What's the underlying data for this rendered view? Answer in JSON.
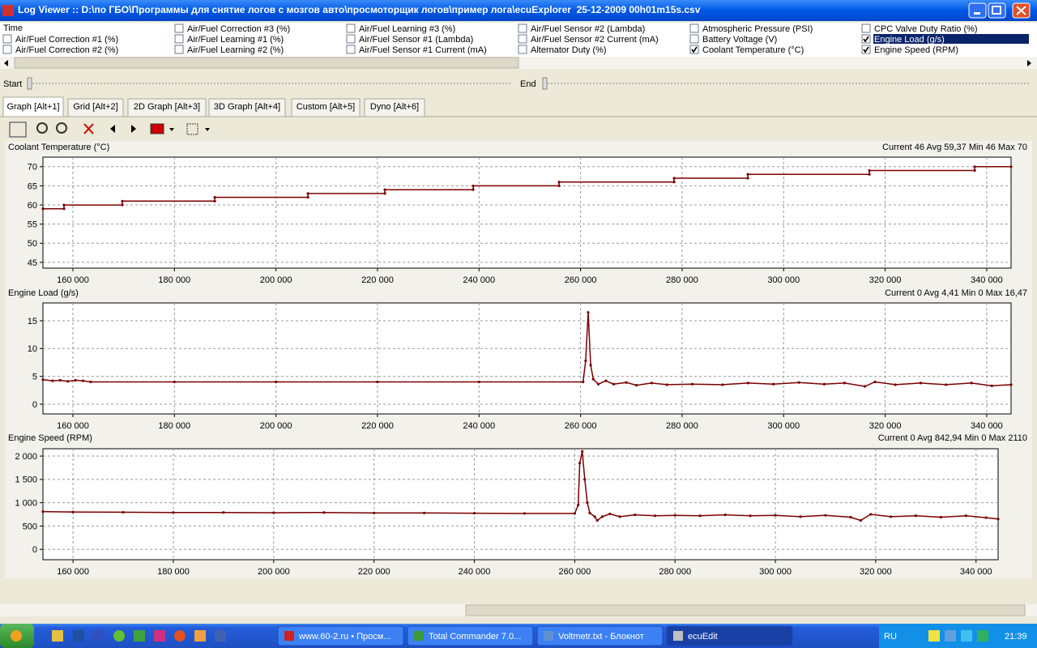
{
  "window": {
    "title": "Log Viewer :: D:\\по ГБО\\Программы для снятие логов с мозгов авто\\просмоторщик логов\\пример лога\\ecuExplorer  25-12-2009 00h01m15s.csv"
  },
  "time_label": "Time",
  "channels": [
    {
      "label": "Air/Fuel Correction #1 (%)",
      "checked": false
    },
    {
      "label": "Air/Fuel Correction #2 (%)",
      "checked": false
    },
    {
      "label": "Air/Fuel Correction #3 (%)",
      "checked": false
    },
    {
      "label": "Air/Fuel Learning #1 (%)",
      "checked": false
    },
    {
      "label": "Air/Fuel Learning #2 (%)",
      "checked": false
    },
    {
      "label": "Air/Fuel Learning #3 (%)",
      "checked": false
    },
    {
      "label": "Air/Fuel Sensor #1 (Lambda)",
      "checked": false
    },
    {
      "label": "Air/Fuel Sensor #1 Current (mA)",
      "checked": false
    },
    {
      "label": "Air/Fuel Sensor #2 (Lambda)",
      "checked": false
    },
    {
      "label": "Air/Fuel Sensor #2 Current (mA)",
      "checked": false
    },
    {
      "label": "Alternator Duty (%)",
      "checked": false
    },
    {
      "label": "Atmospheric Pressure (PSI)",
      "checked": false
    },
    {
      "label": "Battery Voltage (V)",
      "checked": false
    },
    {
      "label": "Coolant Temperature (°C)",
      "checked": true
    },
    {
      "label": "CPC Valve Duty Ratio (%)",
      "checked": false
    },
    {
      "label": "Engine Load (g/s)",
      "checked": true,
      "selected": true
    },
    {
      "label": "Engine Speed (RPM)",
      "checked": true
    }
  ],
  "range": {
    "start": "Start",
    "end": "End"
  },
  "tabs": [
    {
      "label": "Graph [Alt+1]",
      "active": true
    },
    {
      "label": "Grid [Alt+2]",
      "active": false
    },
    {
      "label": "2D Graph [Alt+3]",
      "active": false
    },
    {
      "label": "3D Graph [Alt+4]",
      "active": false
    },
    {
      "label": "Custom [Alt+5]",
      "active": false
    },
    {
      "label": "Dyno [Alt+6]",
      "active": false
    }
  ],
  "graphs": [
    {
      "type": "line",
      "name": "Coolant Temperature (°C)",
      "stats": "Current 46 Avg 59,37 Min 46 Max 70",
      "color": "#7a0000",
      "grid": true,
      "xlim": [
        154100,
        344800
      ],
      "ylim": [
        43.5,
        72.5
      ],
      "yticks": [
        45,
        50,
        55,
        60,
        65,
        70
      ],
      "xticks": [
        {
          "value": 160000,
          "label": "160 000"
        },
        {
          "value": 180000,
          "label": "180 000"
        },
        {
          "value": 200000,
          "label": "200 000"
        },
        {
          "value": 220000,
          "label": "220 000"
        },
        {
          "value": 240000,
          "label": "240 000"
        },
        {
          "value": 260000,
          "label": "260 000"
        },
        {
          "value": 280000,
          "label": "280 000"
        },
        {
          "value": 300000,
          "label": "300 000"
        },
        {
          "value": 320000,
          "label": "320 000"
        },
        {
          "value": 340000,
          "label": "340 000"
        }
      ],
      "x": [
        154100,
        158250,
        158250,
        169740,
        169740,
        187940,
        187940,
        206300,
        206300,
        221450,
        221450,
        238850,
        238850,
        255770,
        255770,
        278430,
        278430,
        292950,
        292950,
        316890,
        316890,
        337640,
        337640,
        344800
      ],
      "values": [
        59,
        59,
        60,
        60,
        61,
        61,
        62,
        62,
        63,
        63,
        64,
        64,
        65,
        65,
        66,
        66,
        67,
        67,
        68,
        68,
        69,
        69,
        70,
        70
      ]
    },
    {
      "type": "line",
      "name": "Engine Load (g/s)",
      "stats": "Current 0 Avg 4,41 Min 0 Max 16,47",
      "color": "#7a0000",
      "grid": true,
      "xlim": [
        154100,
        344800
      ],
      "ylim": [
        -1.75,
        18.2
      ],
      "yticks": [
        0,
        5,
        10,
        15
      ],
      "xticks": [
        {
          "value": 160000,
          "label": "160 000"
        },
        {
          "value": 180000,
          "label": "180 000"
        },
        {
          "value": 200000,
          "label": "200 000"
        },
        {
          "value": 220000,
          "label": "220 000"
        },
        {
          "value": 240000,
          "label": "240 000"
        },
        {
          "value": 260000,
          "label": "260 000"
        },
        {
          "value": 280000,
          "label": "280 000"
        },
        {
          "value": 300000,
          "label": "300 000"
        },
        {
          "value": 320000,
          "label": "320 000"
        },
        {
          "value": 340000,
          "label": "340 000"
        }
      ],
      "x": [
        154100,
        156000,
        157500,
        159000,
        160500,
        162000,
        163500,
        180000,
        200000,
        220000,
        240000,
        260500,
        261000,
        261500,
        262000,
        262500,
        263500,
        265000,
        266500,
        269000,
        271000,
        274000,
        277000,
        282000,
        288000,
        293000,
        298000,
        303000,
        308000,
        312000,
        316000,
        318000,
        322000,
        327000,
        332000,
        337000,
        341000,
        344800
      ],
      "values": [
        4.4,
        4.2,
        4.3,
        4.1,
        4.3,
        4.2,
        4.0,
        4.0,
        4.0,
        4.0,
        4.0,
        4.0,
        7.8,
        16.5,
        7.0,
        4.5,
        3.6,
        4.2,
        3.6,
        3.9,
        3.4,
        3.8,
        3.5,
        3.6,
        3.5,
        3.8,
        3.6,
        3.9,
        3.6,
        3.8,
        3.2,
        4.0,
        3.5,
        3.8,
        3.5,
        3.8,
        3.3,
        3.5
      ]
    },
    {
      "type": "line",
      "name": "Engine Speed (RPM)",
      "stats": "Current 0 Avg 842,94 Min 0 Max 2110",
      "color": "#7a0000",
      "grid": true,
      "xlim": [
        154000,
        344400
      ],
      "ylim": [
        -222,
        2157
      ],
      "yticks": [
        0,
        500,
        {
          "value": 1000,
          "label": "1 000"
        },
        {
          "value": 1500,
          "label": "1 500"
        },
        {
          "value": 2000,
          "label": "2 000"
        }
      ],
      "xticks": [
        {
          "value": 160000,
          "label": "160 000"
        },
        {
          "value": 180000,
          "label": "180 000"
        },
        {
          "value": 200000,
          "label": "200 000"
        },
        {
          "value": 220000,
          "label": "220 000"
        },
        {
          "value": 240000,
          "label": "240 000"
        },
        {
          "value": 260000,
          "label": "260 000"
        },
        {
          "value": 280000,
          "label": "280 000"
        },
        {
          "value": 300000,
          "label": "300 000"
        },
        {
          "value": 320000,
          "label": "320 000"
        },
        {
          "value": 340000,
          "label": "340 000"
        }
      ],
      "x": [
        154000,
        160000,
        170000,
        180000,
        190000,
        200000,
        210000,
        220000,
        230000,
        240000,
        250000,
        260000,
        260700,
        261000,
        261500,
        262000,
        262500,
        263000,
        264000,
        264500,
        265500,
        267000,
        269000,
        272000,
        276000,
        280000,
        285000,
        290000,
        295000,
        300000,
        305000,
        310000,
        315000,
        317000,
        319000,
        323000,
        328000,
        333000,
        338000,
        342000,
        344400
      ],
      "values": [
        810,
        800,
        795,
        790,
        790,
        785,
        790,
        780,
        780,
        775,
        770,
        770,
        950,
        1850,
        2100,
        1500,
        1000,
        780,
        700,
        620,
        700,
        760,
        700,
        740,
        720,
        730,
        720,
        740,
        720,
        730,
        700,
        730,
        690,
        620,
        750,
        700,
        720,
        690,
        720,
        680,
        650
      ]
    }
  ],
  "taskbar": {
    "tasks": [
      {
        "label": "www.60-2.ru • Просм...",
        "active": false
      },
      {
        "label": "Total Commander 7.0...",
        "active": false
      },
      {
        "label": "Voltmetr.txt - Блокнот",
        "active": false
      },
      {
        "label": "ecuEdit",
        "active": true
      }
    ],
    "language": "RU",
    "clock": "21:39"
  }
}
